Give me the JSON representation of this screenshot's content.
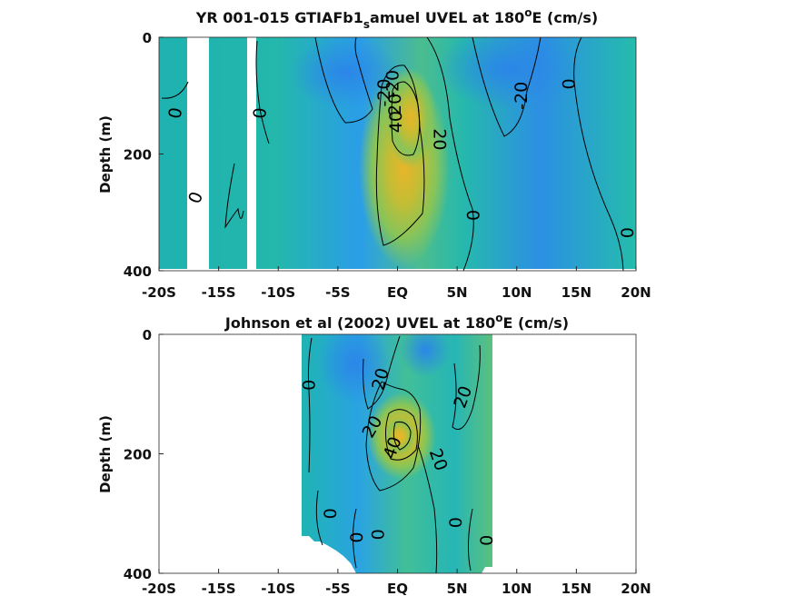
{
  "chart_data": [
    {
      "type": "heatmap",
      "title": "YR 001-015 GTIAFb1",
      "title_sub": "s",
      "title_rest": "amuel UVEL at 180",
      "title_sup": "o",
      "title_end": "E (cm/s)",
      "ylabel": "Depth (m)",
      "x_ticks": [
        "-20S",
        "-15S",
        "-10S",
        "-5S",
        "EQ",
        "5N",
        "10N",
        "15N",
        "20N"
      ],
      "x_range": [
        -20,
        20
      ],
      "y_ticks": [
        "0",
        "200",
        "400"
      ],
      "y_range": [
        0,
        400
      ],
      "y_reversed": true,
      "contour_labels": [
        {
          "text": "0",
          "lat": -18.6,
          "depth": 130,
          "rot": -80
        },
        {
          "text": "0",
          "lat": -11.5,
          "depth": 130,
          "rot": -85
        },
        {
          "text": "0",
          "lat": -16.9,
          "depth": 275,
          "rot": -70
        },
        {
          "text": "-20",
          "lat": -1.1,
          "depth": 95,
          "rot": -90
        },
        {
          "text": "-20",
          "lat": -0.4,
          "depth": 80,
          "rot": -90
        },
        {
          "text": "20",
          "lat": -0.2,
          "depth": 115,
          "rot": -90
        },
        {
          "text": "40",
          "lat": -0.1,
          "depth": 145,
          "rot": -90
        },
        {
          "text": "20",
          "lat": 3.5,
          "depth": 175,
          "rot": 90
        },
        {
          "text": "0",
          "lat": 6.3,
          "depth": 305,
          "rot": 90
        },
        {
          "text": "-20",
          "lat": 10.4,
          "depth": 100,
          "rot": -90
        },
        {
          "text": "0",
          "lat": 14.4,
          "depth": 80,
          "rot": -90
        },
        {
          "text": "0",
          "lat": 19.3,
          "depth": 335,
          "rot": -90
        }
      ]
    },
    {
      "type": "heatmap",
      "title": "Johnson et al (2002) UVEL at 180",
      "title_sup": "o",
      "title_end": "E (cm/s)",
      "ylabel": "Depth (m)",
      "x_ticks": [
        "-20S",
        "-15S",
        "-10S",
        "-5S",
        "EQ",
        "5N",
        "10N",
        "15N",
        "20N"
      ],
      "x_range": [
        -20,
        20
      ],
      "y_ticks": [
        "0",
        "200",
        "400"
      ],
      "y_range": [
        0,
        400
      ],
      "y_reversed": true,
      "data_lat_range": [
        -8,
        8
      ],
      "contour_labels": [
        {
          "text": "0",
          "lat": -7.4,
          "depth": 85,
          "rot": -90
        },
        {
          "text": "20",
          "lat": -1.4,
          "depth": 75,
          "rot": -75
        },
        {
          "text": "20",
          "lat": 5.5,
          "depth": 105,
          "rot": -70
        },
        {
          "text": "20",
          "lat": -2.1,
          "depth": 155,
          "rot": -60
        },
        {
          "text": "40",
          "lat": -0.4,
          "depth": 190,
          "rot": -70
        },
        {
          "text": "20",
          "lat": 3.4,
          "depth": 210,
          "rot": 70
        },
        {
          "text": "0",
          "lat": -5.7,
          "depth": 300,
          "rot": 90
        },
        {
          "text": "0",
          "lat": -1.7,
          "depth": 335,
          "rot": 90
        },
        {
          "text": "0",
          "lat": 4.8,
          "depth": 315,
          "rot": 90
        },
        {
          "text": "0",
          "lat": 7.4,
          "depth": 345,
          "rot": 90
        },
        {
          "text": "0",
          "lat": -3.5,
          "depth": 340,
          "rot": 90
        }
      ]
    }
  ]
}
